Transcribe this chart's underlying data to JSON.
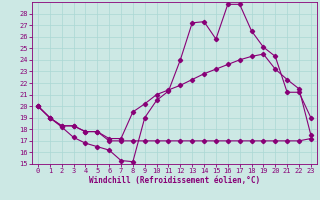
{
  "xlabel": "Windchill (Refroidissement éolien,°C)",
  "background_color": "#cce8e4",
  "line_color": "#880077",
  "grid_color": "#aad8d4",
  "ylim": [
    15,
    29
  ],
  "xlim": [
    -0.5,
    23.5
  ],
  "yticks": [
    15,
    16,
    17,
    18,
    19,
    20,
    21,
    22,
    23,
    24,
    25,
    26,
    27,
    28
  ],
  "xticks": [
    0,
    1,
    2,
    3,
    4,
    5,
    6,
    7,
    8,
    9,
    10,
    11,
    12,
    13,
    14,
    15,
    16,
    17,
    18,
    19,
    20,
    21,
    22,
    23
  ],
  "line1_x": [
    0,
    1,
    2,
    3,
    4,
    5,
    6,
    7,
    8,
    9,
    10,
    11,
    12,
    13,
    14,
    15,
    16,
    17,
    18,
    19,
    20,
    21,
    22,
    23
  ],
  "line1_y": [
    20,
    19,
    18.2,
    17.3,
    16.8,
    16.5,
    16.2,
    15.3,
    15.2,
    19.0,
    20.5,
    21.3,
    24.0,
    27.2,
    27.3,
    25.8,
    28.8,
    28.8,
    26.5,
    25.1,
    24.3,
    21.2,
    21.2,
    19.0
  ],
  "line2_x": [
    0,
    1,
    2,
    3,
    4,
    5,
    6,
    7,
    8,
    9,
    10,
    11,
    12,
    13,
    14,
    15,
    16,
    17,
    18,
    19,
    20,
    21,
    22,
    23
  ],
  "line2_y": [
    20,
    19.0,
    18.3,
    18.3,
    17.8,
    17.8,
    17.2,
    17.2,
    19.5,
    20.2,
    21.0,
    21.4,
    21.8,
    22.3,
    22.8,
    23.2,
    23.6,
    24.0,
    24.3,
    24.5,
    23.2,
    22.3,
    21.5,
    17.5
  ],
  "line3_x": [
    0,
    1,
    2,
    3,
    4,
    5,
    6,
    7,
    8,
    9,
    10,
    11,
    12,
    13,
    14,
    15,
    16,
    17,
    18,
    19,
    20,
    21,
    22,
    23
  ],
  "line3_y": [
    20,
    19.0,
    18.3,
    18.3,
    17.8,
    17.8,
    17.0,
    17.0,
    17.0,
    17.0,
    17.0,
    17.0,
    17.0,
    17.0,
    17.0,
    17.0,
    17.0,
    17.0,
    17.0,
    17.0,
    17.0,
    17.0,
    17.0,
    17.2
  ]
}
